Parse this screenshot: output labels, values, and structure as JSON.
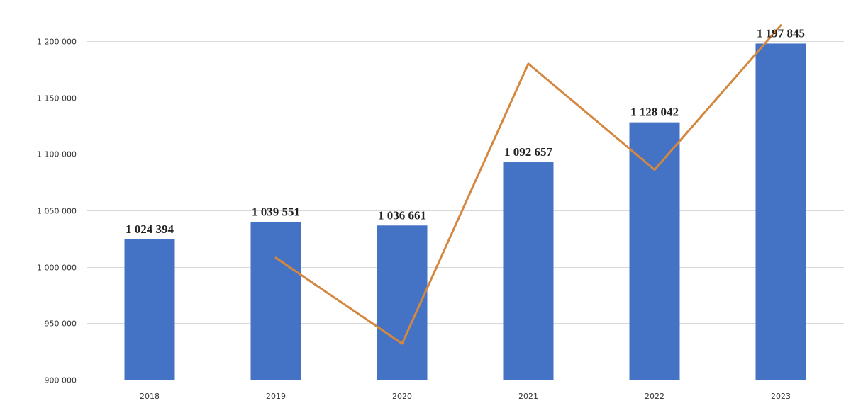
{
  "chart_data": {
    "type": "bar",
    "categories": [
      "2018",
      "2019",
      "2020",
      "2021",
      "2022",
      "2023"
    ],
    "series": [
      {
        "type": "bar",
        "values": [
          1024394,
          1039551,
          1036661,
          1092657,
          1128042,
          1197845
        ],
        "data_labels": [
          "1 024 394",
          "1 039 551",
          "1 036 661",
          "1 092 657",
          "1 128 042",
          "1 197 845"
        ],
        "color": "#4472C4"
      },
      {
        "type": "line",
        "x": [
          "2019",
          "2020",
          "2021",
          "2022",
          "2023"
        ],
        "values": [
          1008000,
          932000,
          1180000,
          1086000,
          1214000
        ],
        "color": "#D4873F"
      }
    ],
    "ylim": [
      900000,
      1200000
    ],
    "yticks": [
      900000,
      950000,
      1000000,
      1050000,
      1100000,
      1150000,
      1200000
    ],
    "ytick_labels": [
      "900 000",
      "950 000",
      "1 000 000",
      "1 050 000",
      "1 100 000",
      "1 150 000",
      "1 200 000"
    ],
    "grid": true,
    "legend": "none"
  }
}
